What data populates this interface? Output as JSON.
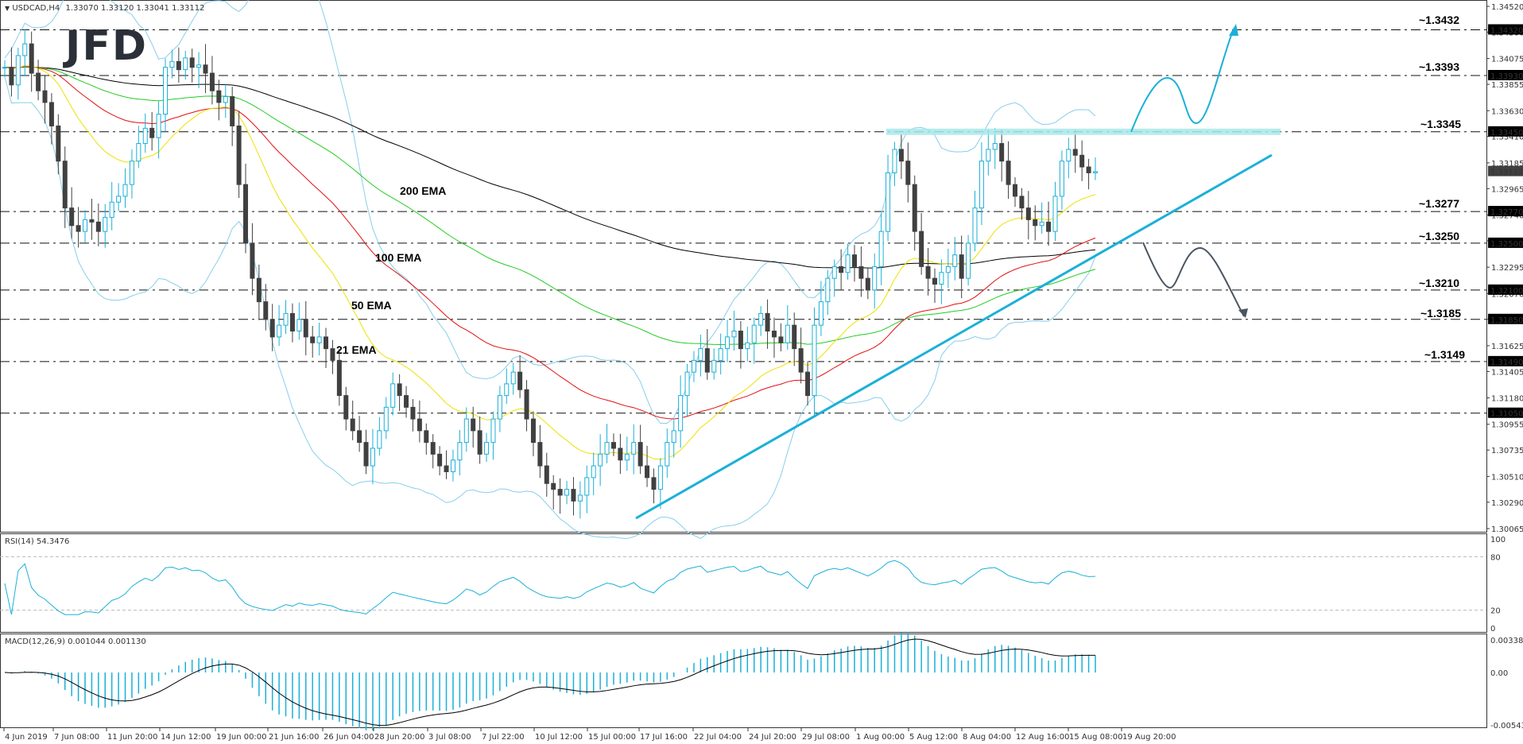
{
  "header": {
    "symbol_info": "USDCAD,H4",
    "ohlc": "1.33070 1.33120 1.33041 1.33112",
    "logo": "JFD"
  },
  "rsi_panel": {
    "title": "RSI(14) 54.3476",
    "levels": [
      "100",
      "80",
      "20",
      "0"
    ]
  },
  "macd_panel": {
    "title": "MACD(12,26,9) 0.001044 0.001130",
    "levels": [
      "0.003384",
      "0.00",
      "-0.005438"
    ]
  },
  "ema_labels": [
    {
      "text": "200 EMA",
      "color": "#000000"
    },
    {
      "text": "100 EMA",
      "color": "#22cc22"
    },
    {
      "text": "50 EMA",
      "color": "#e01010"
    },
    {
      "text": "21 EMA",
      "color": "#f0c000"
    }
  ],
  "level_labels": [
    {
      "text": "~1.3432",
      "color": "#1ab0d8"
    },
    {
      "text": "~1.3393",
      "color": "#1ab0d8"
    },
    {
      "text": "~1.3345",
      "color": "#1ab0d8"
    },
    {
      "text": "~1.3277",
      "color": "#1ab0d8"
    },
    {
      "text": "~1.3250",
      "color": "#4a5560"
    },
    {
      "text": "~1.3210",
      "color": "#4a5560"
    },
    {
      "text": "~1.3185",
      "color": "#4a5560"
    },
    {
      "text": "~1.3149",
      "color": "#4a5560"
    }
  ],
  "colors": {
    "bull": "#1ab0d8",
    "bear": "#404040",
    "bands": "#87ceeb",
    "accent": "#1ab0d8",
    "bearish_path": "#4a5560",
    "zone": "#a8e8ea"
  },
  "chart_data": {
    "type": "line",
    "title": "USDCAD,H4",
    "price_axis": {
      "min": 1.30065,
      "max": 1.3452,
      "ticks": [
        "1.34520",
        "1.34300",
        "1.34075",
        "1.33855",
        "1.33630",
        "1.33410",
        "1.33185",
        "1.32965",
        "1.32740",
        "1.32520",
        "1.32295",
        "1.32070",
        "1.31850",
        "1.31625",
        "1.31405",
        "1.31180",
        "1.30955",
        "1.30735",
        "1.30510",
        "1.30290",
        "1.30065"
      ],
      "highlighted": [
        "1.34320",
        "1.33930",
        "1.33450",
        "1.33112",
        "1.32770",
        "1.32500",
        "1.32100",
        "1.31850",
        "1.31490",
        "1.31050"
      ]
    },
    "horizontal_levels": [
      1.3432,
      1.3393,
      1.3345,
      1.3277,
      1.325,
      1.321,
      1.3185,
      1.3149,
      1.3105
    ],
    "x_labels": [
      "4 Jun 2019",
      "7 Jun 08:00",
      "11 Jun 20:00",
      "14 Jun 12:00",
      "19 Jun 00:00",
      "21 Jun 16:00",
      "26 Jun 04:00",
      "28 Jun 20:00",
      "3 Jul 08:00",
      "7 Jul 22:00",
      "10 Jul 12:00",
      "15 Jul 00:00",
      "17 Jul 16:00",
      "22 Jul 04:00",
      "24 Jul 20:00",
      "29 Jul 08:00",
      "1 Aug 00:00",
      "5 Aug 12:00",
      "8 Aug 04:00",
      "12 Aug 16:00",
      "15 Aug 08:00",
      "19 Aug 20:00"
    ],
    "close_series": [
      1.34,
      1.3385,
      1.341,
      1.342,
      1.3395,
      1.338,
      1.337,
      1.335,
      1.332,
      1.328,
      1.3265,
      1.326,
      1.327,
      1.3268,
      1.326,
      1.3272,
      1.3285,
      1.329,
      1.33,
      1.332,
      1.3335,
      1.3348,
      1.334,
      1.336,
      1.34,
      1.3405,
      1.3398,
      1.3408,
      1.34,
      1.3402,
      1.3395,
      1.338,
      1.337,
      1.3375,
      1.335,
      1.33,
      1.325,
      1.322,
      1.32,
      1.3185,
      1.317,
      1.318,
      1.319,
      1.3175,
      1.3185,
      1.317,
      1.3165,
      1.317,
      1.316,
      1.315,
      1.312,
      1.31,
      1.309,
      1.308,
      1.306,
      1.3075,
      1.309,
      1.311,
      1.313,
      1.312,
      1.311,
      1.31,
      1.309,
      1.308,
      1.307,
      1.306,
      1.3055,
      1.3065,
      1.308,
      1.31,
      1.309,
      1.307,
      1.308,
      1.31,
      1.312,
      1.313,
      1.314,
      1.3125,
      1.31,
      1.308,
      1.306,
      1.3045,
      1.304,
      1.3035,
      1.304,
      1.303,
      1.3035,
      1.305,
      1.306,
      1.307,
      1.308,
      1.3075,
      1.3065,
      1.307,
      1.308,
      1.306,
      1.305,
      1.304,
      1.306,
      1.308,
      1.309,
      1.312,
      1.314,
      1.315,
      1.316,
      1.314,
      1.315,
      1.316,
      1.317,
      1.3175,
      1.316,
      1.3165,
      1.318,
      1.319,
      1.3175,
      1.317,
      1.3165,
      1.318,
      1.316,
      1.314,
      1.312,
      1.318,
      1.32,
      1.322,
      1.323,
      1.3225,
      1.324,
      1.323,
      1.322,
      1.321,
      1.323,
      1.326,
      1.331,
      1.333,
      1.332,
      1.33,
      1.326,
      1.323,
      1.322,
      1.3215,
      1.3225,
      1.323,
      1.324,
      1.322,
      1.325,
      1.328,
      1.332,
      1.333,
      1.3335,
      1.332,
      1.33,
      1.329,
      1.328,
      1.327,
      1.3265,
      1.3268,
      1.326,
      1.329,
      1.332,
      1.333,
      1.3325,
      1.3315,
      1.331,
      1.3311
    ],
    "rsi_range": [
      0,
      100
    ],
    "macd_range": [
      -0.005438,
      0.003384
    ],
    "annotations": [
      "200 EMA",
      "100 EMA",
      "50 EMA",
      "21 EMA",
      "ascending trendline",
      "resistance zone ~1.3345",
      "bullish projection to ~1.3432",
      "bearish projection to ~1.3185"
    ]
  }
}
